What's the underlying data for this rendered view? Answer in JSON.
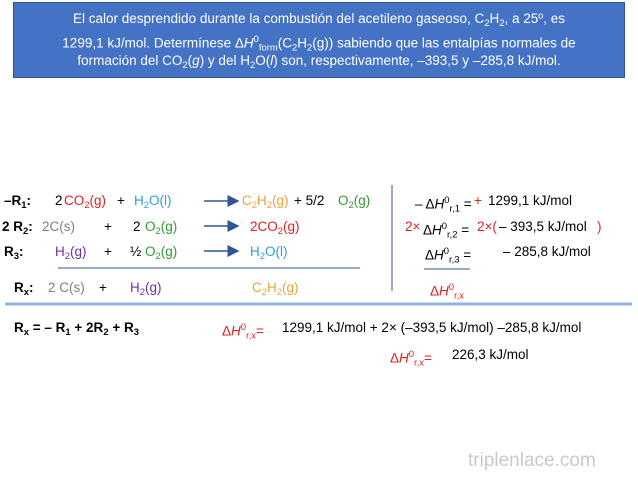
{
  "items": [
    {
      "runs": [
        {
          "t": "El calor desprendido durante la combustión del acetileno gaseoso, C"
        },
        {
          "sub": "2"
        },
        {
          "t": "H"
        },
        {
          "sub": "2"
        },
        {
          "t": ", a 25º, es"
        }
      ]
    },
    {
      "runs": [
        {
          "t": "1299,1 kJ/mol. Determínese Δ"
        },
        {
          "i": "H"
        },
        {
          "sup": "0"
        },
        {
          "sub": "form"
        },
        {
          "t": "(C"
        },
        {
          "sub": "2"
        },
        {
          "t": "H"
        },
        {
          "sub": "2"
        },
        {
          "t": "(g)) sabiendo que las  entalpías normales de"
        }
      ]
    },
    {
      "runs": [
        {
          "t": "formación del CO"
        },
        {
          "sub": "2"
        },
        {
          "t": "("
        },
        {
          "i": "g"
        },
        {
          "t": ") y del H"
        },
        {
          "sub": "2"
        },
        {
          "t": "O("
        },
        {
          "i": "l"
        },
        {
          "t": ") son, respectivamente, –393,5 y –285,8 kJ/mol."
        }
      ]
    },
    {
      "bold": true,
      "runs": [
        {
          "t": "–R"
        },
        {
          "sub": "1"
        },
        {
          "t": ":"
        }
      ]
    },
    {
      "runs": [
        {
          "t": "2"
        }
      ]
    },
    {
      "color": "#e02020",
      "runs": [
        {
          "t": "CO"
        },
        {
          "sub": "2"
        },
        {
          "t": "(g)"
        }
      ]
    },
    {
      "runs": [
        {
          "t": "+"
        }
      ]
    },
    {
      "color": "#2e9fd6",
      "runs": [
        {
          "t": "H"
        },
        {
          "sub": "2"
        },
        {
          "t": "O(l)"
        }
      ]
    },
    {
      "color": "#e8a33a",
      "runs": [
        {
          "t": "C"
        },
        {
          "sub": "2"
        },
        {
          "t": "H"
        },
        {
          "sub": "2"
        },
        {
          "t": "(g)"
        }
      ]
    },
    {
      "runs": [
        {
          "t": "+ 5/2"
        }
      ]
    },
    {
      "color": "#339933",
      "runs": [
        {
          "t": "O"
        },
        {
          "sub": "2"
        },
        {
          "t": "(g)"
        }
      ]
    },
    {
      "runs": [
        {
          "t": "– Δ"
        },
        {
          "i": "H"
        },
        {
          "sup": "0"
        },
        {
          "sub": "r,1"
        },
        {
          "t": " ="
        }
      ]
    },
    {
      "color": "#e02020",
      "runs": [
        {
          "t": "+"
        }
      ]
    },
    {
      "runs": [
        {
          "t": "1299,1 kJ/mol"
        }
      ]
    },
    {
      "bold": true,
      "runs": [
        {
          "t": "2 R"
        },
        {
          "sub": "2"
        },
        {
          "t": ":"
        }
      ]
    },
    {
      "color": "#7f7f7f",
      "runs": [
        {
          "t": "2C(s)"
        }
      ]
    },
    {
      "runs": [
        {
          "t": "+"
        }
      ]
    },
    {
      "runs": [
        {
          "t": "2"
        }
      ]
    },
    {
      "color": "#339933",
      "runs": [
        {
          "t": "O"
        },
        {
          "sub": "2"
        },
        {
          "t": "(g)"
        }
      ]
    },
    {
      "color": "#e02020",
      "runs": [
        {
          "t": "2CO"
        },
        {
          "sub": "2"
        },
        {
          "t": "(g)"
        }
      ]
    },
    {
      "color": "#e02020",
      "runs": [
        {
          "t": "2×"
        }
      ]
    },
    {
      "runs": [
        {
          "t": "Δ"
        },
        {
          "i": "H"
        },
        {
          "sup": "0"
        },
        {
          "sub": "r,2"
        },
        {
          "t": " ="
        }
      ]
    },
    {
      "color": "#e02020",
      "runs": [
        {
          "t": "2×("
        }
      ]
    },
    {
      "runs": [
        {
          "t": "– 393,5 kJ/mol"
        }
      ]
    },
    {
      "color": "#e02020",
      "runs": [
        {
          "t": ")"
        }
      ]
    },
    {
      "bold": true,
      "runs": [
        {
          "t": "R"
        },
        {
          "sub": "3"
        },
        {
          "t": ":"
        }
      ]
    },
    {
      "color": "#7030a0",
      "runs": [
        {
          "t": "H"
        },
        {
          "sub": "2"
        },
        {
          "t": "(g)"
        }
      ]
    },
    {
      "runs": [
        {
          "t": "+"
        }
      ]
    },
    {
      "runs": [
        {
          "t": "½"
        }
      ]
    },
    {
      "color": "#339933",
      "runs": [
        {
          "t": "O"
        },
        {
          "sub": "2"
        },
        {
          "t": "(g)"
        }
      ]
    },
    {
      "color": "#2e9fd6",
      "runs": [
        {
          "t": "H"
        },
        {
          "sub": "2"
        },
        {
          "t": "O(l)"
        }
      ]
    },
    {
      "runs": [
        {
          "t": "Δ"
        },
        {
          "i": "H"
        },
        {
          "sup": "0"
        },
        {
          "sub": "r,3"
        },
        {
          "t": " ="
        }
      ]
    },
    {
      "runs": [
        {
          "t": "– 285,8 kJ/mol"
        }
      ]
    },
    {
      "bold": true,
      "runs": [
        {
          "t": "R"
        },
        {
          "sub": "x"
        },
        {
          "t": ":"
        }
      ]
    },
    {
      "color": "#7f7f7f",
      "runs": [
        {
          "t": "2 C(s)"
        }
      ]
    },
    {
      "runs": [
        {
          "t": "+"
        }
      ]
    },
    {
      "color": "#7030a0",
      "runs": [
        {
          "t": "H"
        },
        {
          "sub": "2"
        },
        {
          "t": "(g)"
        }
      ]
    },
    {
      "color": "#e8a33a",
      "runs": [
        {
          "t": "C"
        },
        {
          "sub": "2"
        },
        {
          "t": "H"
        },
        {
          "sub": "2"
        },
        {
          "t": "(g)"
        }
      ]
    },
    {
      "color": "#e02020",
      "runs": [
        {
          "t": "Δ"
        },
        {
          "i": "H"
        },
        {
          "sup": "0"
        },
        {
          "sub": "r,x"
        }
      ]
    },
    {
      "bold": true,
      "runs": [
        {
          "t": "R"
        },
        {
          "sub": "x"
        },
        {
          "t": "  = – R"
        },
        {
          "sub": "1"
        },
        {
          "t": " + 2R"
        },
        {
          "sub": "2"
        },
        {
          "t": " +  R"
        },
        {
          "sub": "3"
        }
      ]
    },
    {
      "color": "#e02020",
      "runs": [
        {
          "t": "Δ"
        },
        {
          "i": "H"
        },
        {
          "sup": "0"
        },
        {
          "sub": "r,x"
        },
        {
          "t": "="
        }
      ]
    },
    {
      "runs": [
        {
          "t": "1299,1 kJ/mol  +  2× (–393,5 kJ/mol) –285,8 kJ/mol"
        }
      ]
    },
    {
      "color": "#e02020",
      "runs": [
        {
          "t": "Δ"
        },
        {
          "i": "H"
        },
        {
          "sup": "0"
        },
        {
          "sub": "r,x"
        },
        {
          "t": "="
        }
      ]
    },
    {
      "runs": [
        {
          "t": "226,3 kJ/mol"
        }
      ]
    }
  ],
  "footer": "triplenlace.com"
}
